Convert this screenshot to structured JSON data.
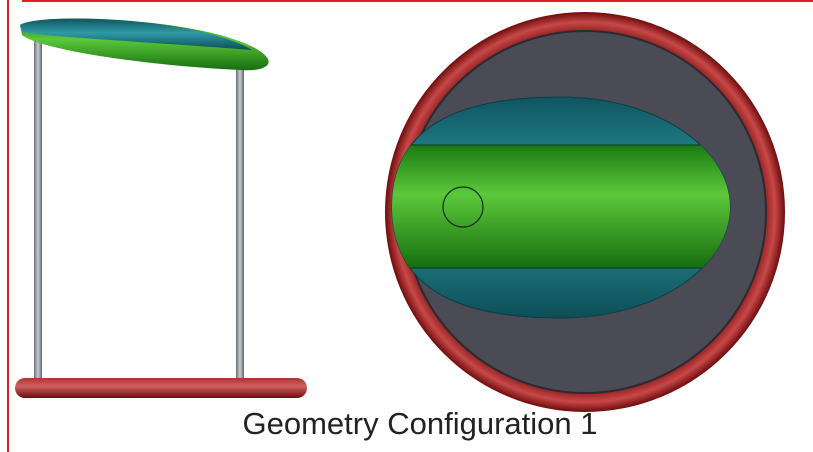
{
  "caption": "Geometry Configuration 1"
}
